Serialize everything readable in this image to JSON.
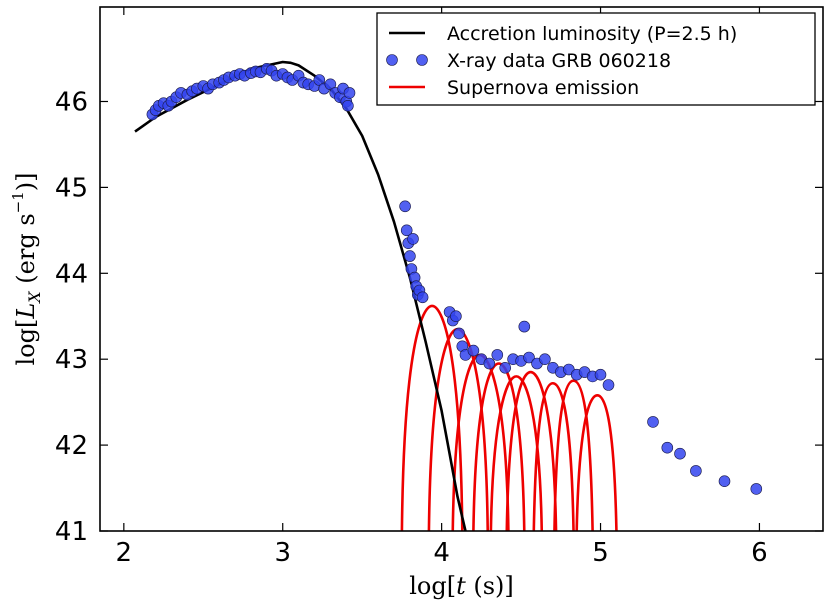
{
  "chart_data": {
    "type": "scatter",
    "title": "",
    "xlabel": "log[t (s)]",
    "ylabel": "log[L_X (erg s^-1)]",
    "xlim": [
      1.85,
      6.4
    ],
    "ylim": [
      41,
      47.1
    ],
    "xticks": [
      2,
      3,
      4,
      5,
      6
    ],
    "yticks": [
      41,
      42,
      43,
      44,
      45,
      46
    ],
    "xtick_labels": [
      "2",
      "3",
      "4",
      "5",
      "6"
    ],
    "ytick_labels": [
      "41",
      "42",
      "43",
      "44",
      "45",
      "46"
    ],
    "legend_position": "top-right",
    "colors": {
      "accretion": "#000000",
      "xray": "#3344ee",
      "supernova": "#ee0000"
    },
    "series": [
      {
        "name": "Accretion luminosity (P=2.5 h)",
        "kind": "line",
        "x": [
          2.07,
          2.2,
          2.4,
          2.6,
          2.8,
          3.0,
          3.05,
          3.1,
          3.2,
          3.3,
          3.4,
          3.5,
          3.6,
          3.7,
          3.8,
          3.9,
          4.0,
          4.05,
          4.1,
          4.15
        ],
        "y": [
          45.65,
          45.82,
          46.02,
          46.2,
          46.38,
          46.46,
          46.45,
          46.42,
          46.3,
          46.15,
          45.92,
          45.6,
          45.15,
          44.6,
          43.95,
          43.2,
          42.4,
          41.9,
          41.4,
          41.0
        ]
      },
      {
        "name": "X-ray data GRB 060218",
        "kind": "scatter",
        "x": [
          2.18,
          2.2,
          2.22,
          2.25,
          2.28,
          2.3,
          2.33,
          2.36,
          2.4,
          2.43,
          2.46,
          2.5,
          2.53,
          2.56,
          2.6,
          2.63,
          2.66,
          2.7,
          2.73,
          2.76,
          2.8,
          2.83,
          2.86,
          2.9,
          2.93,
          2.96,
          3.0,
          3.03,
          3.06,
          3.1,
          3.13,
          3.16,
          3.2,
          3.23,
          3.26,
          3.3,
          3.33,
          3.36,
          3.38,
          3.4,
          3.41,
          3.42,
          3.77,
          3.78,
          3.79,
          3.8,
          3.81,
          3.82,
          3.83,
          3.84,
          3.85,
          3.86,
          3.88,
          4.05,
          4.07,
          4.09,
          4.11,
          4.13,
          4.15,
          4.2,
          4.25,
          4.3,
          4.35,
          4.4,
          4.45,
          4.5,
          4.55,
          4.6,
          4.65,
          4.7,
          4.75,
          4.8,
          4.85,
          4.9,
          4.95,
          5.0,
          5.05,
          4.52,
          5.33,
          5.42,
          5.5,
          5.6,
          5.78,
          5.98
        ],
        "y": [
          45.85,
          45.9,
          45.95,
          45.98,
          45.95,
          46.0,
          46.05,
          46.1,
          46.08,
          46.12,
          46.15,
          46.18,
          46.15,
          46.2,
          46.22,
          46.25,
          46.28,
          46.3,
          46.32,
          46.3,
          46.33,
          46.35,
          46.34,
          46.38,
          46.36,
          46.3,
          46.32,
          46.28,
          46.25,
          46.3,
          46.22,
          46.2,
          46.18,
          46.25,
          46.15,
          46.2,
          46.1,
          46.05,
          46.15,
          46.0,
          45.95,
          46.1,
          44.78,
          44.5,
          44.35,
          44.2,
          44.05,
          44.4,
          43.95,
          43.85,
          43.75,
          43.8,
          43.72,
          43.55,
          43.45,
          43.5,
          43.3,
          43.15,
          43.05,
          43.1,
          43.0,
          42.95,
          43.05,
          42.9,
          43.0,
          42.98,
          43.02,
          42.95,
          43.0,
          42.9,
          42.85,
          42.88,
          42.82,
          42.85,
          42.8,
          42.82,
          42.7,
          43.38,
          42.27,
          41.97,
          41.9,
          41.7,
          41.58,
          41.49
        ]
      },
      {
        "name": "Supernova emission",
        "kind": "curves",
        "peaks": [
          {
            "start": 3.75,
            "peak_x": 3.94,
            "peak_y": 43.62,
            "end": 4.13
          },
          {
            "start": 3.92,
            "peak_x": 4.1,
            "peak_y": 43.35,
            "end": 4.29
          },
          {
            "start": 4.07,
            "peak_x": 4.24,
            "peak_y": 43.05,
            "end": 4.42
          },
          {
            "start": 4.2,
            "peak_x": 4.36,
            "peak_y": 42.95,
            "end": 4.52
          },
          {
            "start": 4.31,
            "peak_x": 4.47,
            "peak_y": 42.8,
            "end": 4.63
          },
          {
            "start": 4.41,
            "peak_x": 4.56,
            "peak_y": 42.85,
            "end": 4.72
          },
          {
            "start": 4.58,
            "peak_x": 4.7,
            "peak_y": 42.72,
            "end": 4.83
          },
          {
            "start": 4.71,
            "peak_x": 4.83,
            "peak_y": 42.75,
            "end": 4.95
          },
          {
            "start": 4.85,
            "peak_x": 4.98,
            "peak_y": 42.58,
            "end": 5.1
          }
        ]
      }
    ],
    "legend": [
      {
        "label": "Accretion luminosity (P=2.5 h)",
        "marker": "line",
        "color_key": "accretion"
      },
      {
        "label": "X-ray data GRB 060218",
        "marker": "dots",
        "color_key": "xray"
      },
      {
        "label": "Supernova emission",
        "marker": "line",
        "color_key": "supernova"
      }
    ]
  }
}
